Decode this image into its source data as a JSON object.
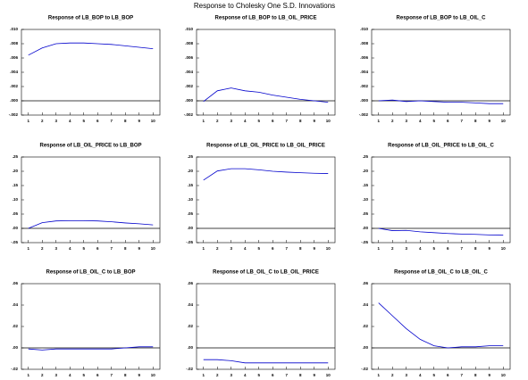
{
  "title": "Response to Cholesky One S.D. Innovations",
  "chart_data": [
    {
      "type": "line",
      "title": "Response of LB_BOP to LB_BOP",
      "x": [
        1,
        2,
        3,
        4,
        5,
        6,
        7,
        8,
        9,
        10
      ],
      "color": "#0000cc",
      "values": [
        0.0064,
        0.0074,
        0.008,
        0.0081,
        0.0081,
        0.008,
        0.0079,
        0.0077,
        0.0075,
        0.0073
      ],
      "xlim": [
        0.5,
        10.5
      ],
      "xticks": [
        1,
        2,
        3,
        4,
        5,
        6,
        7,
        8,
        9,
        10
      ],
      "ylim": [
        -0.002,
        0.01
      ],
      "yticks": [
        {
          "value": -0.002,
          "label": "-.002"
        },
        {
          "value": 0,
          "label": ".000"
        },
        {
          "value": 0.002,
          "label": ".002"
        },
        {
          "value": 0.004,
          "label": ".004"
        },
        {
          "value": 0.006,
          "label": ".006"
        },
        {
          "value": 0.008,
          "label": ".008"
        },
        {
          "value": 0.01,
          "label": ".010"
        }
      ]
    },
    {
      "type": "line",
      "title": "Response of LB_BOP to LB_OIL_PRICE",
      "x": [
        1,
        2,
        3,
        4,
        5,
        6,
        7,
        8,
        9,
        10
      ],
      "color": "#0000cc",
      "values": [
        -0.0001,
        0.0014,
        0.0018,
        0.0014,
        0.0012,
        0.0008,
        0.0005,
        0.0002,
        0.0,
        -0.0002
      ],
      "xlim": [
        0.5,
        10.5
      ],
      "xticks": [
        1,
        2,
        3,
        4,
        5,
        6,
        7,
        8,
        9,
        10
      ],
      "ylim": [
        -0.002,
        0.01
      ],
      "yticks": [
        {
          "value": -0.002,
          "label": "-.002"
        },
        {
          "value": 0,
          "label": ".000"
        },
        {
          "value": 0.002,
          "label": ".002"
        },
        {
          "value": 0.004,
          "label": ".004"
        },
        {
          "value": 0.006,
          "label": ".006"
        },
        {
          "value": 0.008,
          "label": ".008"
        },
        {
          "value": 0.01,
          "label": ".010"
        }
      ]
    },
    {
      "type": "line",
      "title": "Response of LB_BOP to LB_OIL_C",
      "x": [
        1,
        2,
        3,
        4,
        5,
        6,
        7,
        8,
        9,
        10
      ],
      "color": "#0000cc",
      "values": [
        0.0,
        0.0001,
        -0.0001,
        0.0,
        -0.0001,
        -0.0002,
        -0.0002,
        -0.0003,
        -0.0004,
        -0.0004
      ],
      "xlim": [
        0.5,
        10.5
      ],
      "xticks": [
        1,
        2,
        3,
        4,
        5,
        6,
        7,
        8,
        9,
        10
      ],
      "ylim": [
        -0.002,
        0.01
      ],
      "yticks": [
        {
          "value": -0.002,
          "label": "-.002"
        },
        {
          "value": 0,
          "label": ".000"
        },
        {
          "value": 0.002,
          "label": ".002"
        },
        {
          "value": 0.004,
          "label": ".004"
        },
        {
          "value": 0.006,
          "label": ".006"
        },
        {
          "value": 0.008,
          "label": ".008"
        },
        {
          "value": 0.01,
          "label": ".010"
        }
      ]
    },
    {
      "type": "line",
      "title": "Response of LB_OIL_PRICE to LB_BOP",
      "x": [
        1,
        2,
        3,
        4,
        5,
        6,
        7,
        8,
        9,
        10
      ],
      "color": "#0000cc",
      "values": [
        0.0,
        0.02,
        0.026,
        0.027,
        0.027,
        0.026,
        0.023,
        0.019,
        0.016,
        0.012
      ],
      "xlim": [
        0.5,
        10.5
      ],
      "xticks": [
        1,
        2,
        3,
        4,
        5,
        6,
        7,
        8,
        9,
        10
      ],
      "ylim": [
        -0.05,
        0.25
      ],
      "yticks": [
        {
          "value": -0.05,
          "label": "-.05"
        },
        {
          "value": 0,
          "label": ".00"
        },
        {
          "value": 0.05,
          "label": ".05"
        },
        {
          "value": 0.1,
          "label": ".10"
        },
        {
          "value": 0.15,
          "label": ".15"
        },
        {
          "value": 0.2,
          "label": ".20"
        },
        {
          "value": 0.25,
          "label": ".25"
        }
      ]
    },
    {
      "type": "line",
      "title": "Response of LB_OIL_PRICE to LB_OIL_PRICE",
      "x": [
        1,
        2,
        3,
        4,
        5,
        6,
        7,
        8,
        9,
        10
      ],
      "color": "#0000cc",
      "values": [
        0.169,
        0.201,
        0.209,
        0.209,
        0.205,
        0.2,
        0.197,
        0.195,
        0.193,
        0.192
      ],
      "xlim": [
        0.5,
        10.5
      ],
      "xticks": [
        1,
        2,
        3,
        4,
        5,
        6,
        7,
        8,
        9,
        10
      ],
      "ylim": [
        -0.05,
        0.25
      ],
      "yticks": [
        {
          "value": -0.05,
          "label": "-.05"
        },
        {
          "value": 0,
          "label": ".00"
        },
        {
          "value": 0.05,
          "label": ".05"
        },
        {
          "value": 0.1,
          "label": ".10"
        },
        {
          "value": 0.15,
          "label": ".15"
        },
        {
          "value": 0.2,
          "label": ".20"
        },
        {
          "value": 0.25,
          "label": ".25"
        }
      ]
    },
    {
      "type": "line",
      "title": "Response of LB_OIL_PRICE to LB_OIL_C",
      "x": [
        1,
        2,
        3,
        4,
        5,
        6,
        7,
        8,
        9,
        10
      ],
      "color": "#0000cc",
      "values": [
        0.0,
        -0.008,
        -0.007,
        -0.012,
        -0.015,
        -0.018,
        -0.02,
        -0.021,
        -0.023,
        -0.024
      ],
      "xlim": [
        0.5,
        10.5
      ],
      "xticks": [
        1,
        2,
        3,
        4,
        5,
        6,
        7,
        8,
        9,
        10
      ],
      "ylim": [
        -0.05,
        0.25
      ],
      "yticks": [
        {
          "value": -0.05,
          "label": "-.05"
        },
        {
          "value": 0,
          "label": ".00"
        },
        {
          "value": 0.05,
          "label": ".05"
        },
        {
          "value": 0.1,
          "label": ".10"
        },
        {
          "value": 0.15,
          "label": ".15"
        },
        {
          "value": 0.2,
          "label": ".20"
        },
        {
          "value": 0.25,
          "label": ".25"
        }
      ]
    },
    {
      "type": "line",
      "title": "Response of LB_OIL_C to LB_BOP",
      "x": [
        1,
        2,
        3,
        4,
        5,
        6,
        7,
        8,
        9,
        10
      ],
      "color": "#0000cc",
      "values": [
        -0.001,
        -0.002,
        -0.001,
        -0.001,
        -0.001,
        -0.001,
        -0.001,
        0.0,
        0.001,
        0.001
      ],
      "xlim": [
        0.5,
        10.5
      ],
      "xticks": [
        1,
        2,
        3,
        4,
        5,
        6,
        7,
        8,
        9,
        10
      ],
      "ylim": [
        -0.02,
        0.06
      ],
      "yticks": [
        {
          "value": -0.02,
          "label": "-.02"
        },
        {
          "value": 0,
          "label": ".00"
        },
        {
          "value": 0.02,
          "label": ".02"
        },
        {
          "value": 0.04,
          "label": ".04"
        },
        {
          "value": 0.06,
          "label": ".06"
        }
      ]
    },
    {
      "type": "line",
      "title": "Response of LB_OIL_C to LB_OIL_PRICE",
      "x": [
        1,
        2,
        3,
        4,
        5,
        6,
        7,
        8,
        9,
        10
      ],
      "color": "#0000cc",
      "values": [
        -0.011,
        -0.011,
        -0.012,
        -0.014,
        -0.014,
        -0.014,
        -0.014,
        -0.014,
        -0.014,
        -0.014
      ],
      "xlim": [
        0.5,
        10.5
      ],
      "xticks": [
        1,
        2,
        3,
        4,
        5,
        6,
        7,
        8,
        9,
        10
      ],
      "ylim": [
        -0.02,
        0.06
      ],
      "yticks": [
        {
          "value": -0.02,
          "label": "-.02"
        },
        {
          "value": 0,
          "label": ".00"
        },
        {
          "value": 0.02,
          "label": ".02"
        },
        {
          "value": 0.04,
          "label": ".04"
        },
        {
          "value": 0.06,
          "label": ".06"
        }
      ]
    },
    {
      "type": "line",
      "title": "Response of LB_OIL_C to LB_OIL_C",
      "x": [
        1,
        2,
        3,
        4,
        5,
        6,
        7,
        8,
        9,
        10
      ],
      "color": "#0000cc",
      "values": [
        0.042,
        0.03,
        0.018,
        0.008,
        0.002,
        0.0,
        0.001,
        0.001,
        0.002,
        0.002
      ],
      "xlim": [
        0.5,
        10.5
      ],
      "xticks": [
        1,
        2,
        3,
        4,
        5,
        6,
        7,
        8,
        9,
        10
      ],
      "ylim": [
        -0.02,
        0.06
      ],
      "yticks": [
        {
          "value": -0.02,
          "label": "-.02"
        },
        {
          "value": 0,
          "label": ".00"
        },
        {
          "value": 0.02,
          "label": ".02"
        },
        {
          "value": 0.04,
          "label": ".04"
        },
        {
          "value": 0.06,
          "label": ".06"
        }
      ]
    }
  ]
}
